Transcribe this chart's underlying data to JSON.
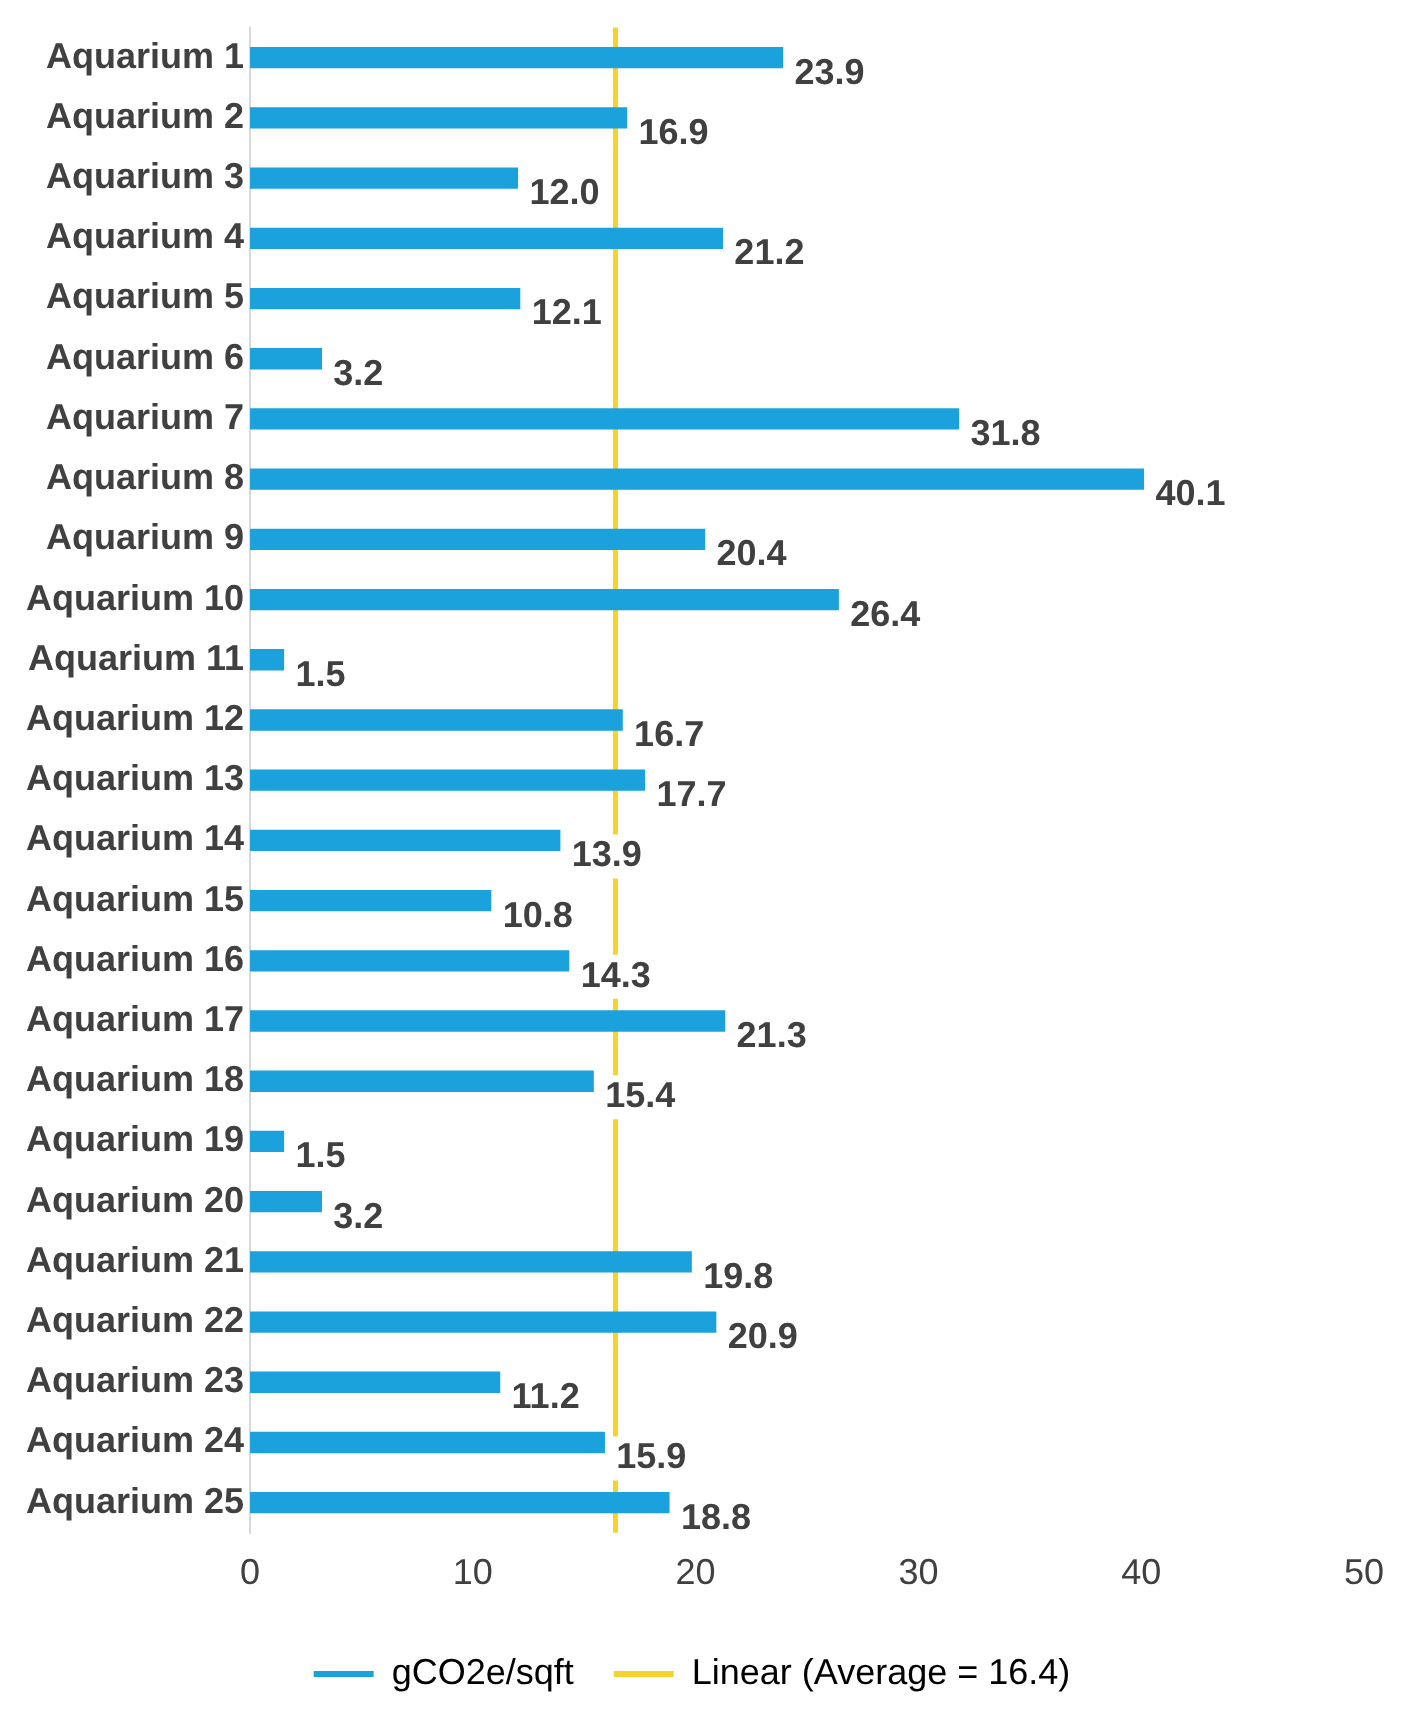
{
  "chart_data": {
    "type": "bar",
    "orientation": "horizontal",
    "categories": [
      "Aquarium 1",
      "Aquarium 2",
      "Aquarium 3",
      "Aquarium 4",
      "Aquarium 5",
      "Aquarium 6",
      "Aquarium 7",
      "Aquarium 8",
      "Aquarium 9",
      "Aquarium 10",
      "Aquarium 11",
      "Aquarium 12",
      "Aquarium 13",
      "Aquarium 14",
      "Aquarium 15",
      "Aquarium 16",
      "Aquarium 17",
      "Aquarium 18",
      "Aquarium 19",
      "Aquarium 20",
      "Aquarium 21",
      "Aquarium 22",
      "Aquarium 23",
      "Aquarium 24",
      "Aquarium 25"
    ],
    "series": [
      {
        "name": "gCO2e/sqft",
        "color": "#1ba1dc",
        "values": [
          23.9,
          16.9,
          12.0,
          21.2,
          12.1,
          3.2,
          31.8,
          40.1,
          20.4,
          26.4,
          1.5,
          16.7,
          17.7,
          13.9,
          10.8,
          14.3,
          21.3,
          15.4,
          1.5,
          3.2,
          19.8,
          20.9,
          11.2,
          15.9,
          18.8
        ]
      }
    ],
    "value_labels": [
      "23.9",
      "16.9",
      "12.0",
      "21.2",
      "12.1",
      "3.2",
      "31.8",
      "40.1",
      "20.4",
      "26.4",
      "1.5",
      "16.7",
      "17.7",
      "13.9",
      "10.8",
      "14.3",
      "21.3",
      "15.4",
      "1.5",
      "3.2",
      "19.8",
      "20.9",
      "11.2",
      "15.9",
      "18.8"
    ],
    "xlim": [
      0,
      50
    ],
    "xticks": [
      0,
      10,
      20,
      30,
      40,
      50
    ],
    "grid": false,
    "legend": "bottom",
    "ref_lines": [
      {
        "axis": "x",
        "value": 16.4,
        "label": "Linear (Average = 16.4)",
        "color": "#f5d328"
      }
    ]
  }
}
